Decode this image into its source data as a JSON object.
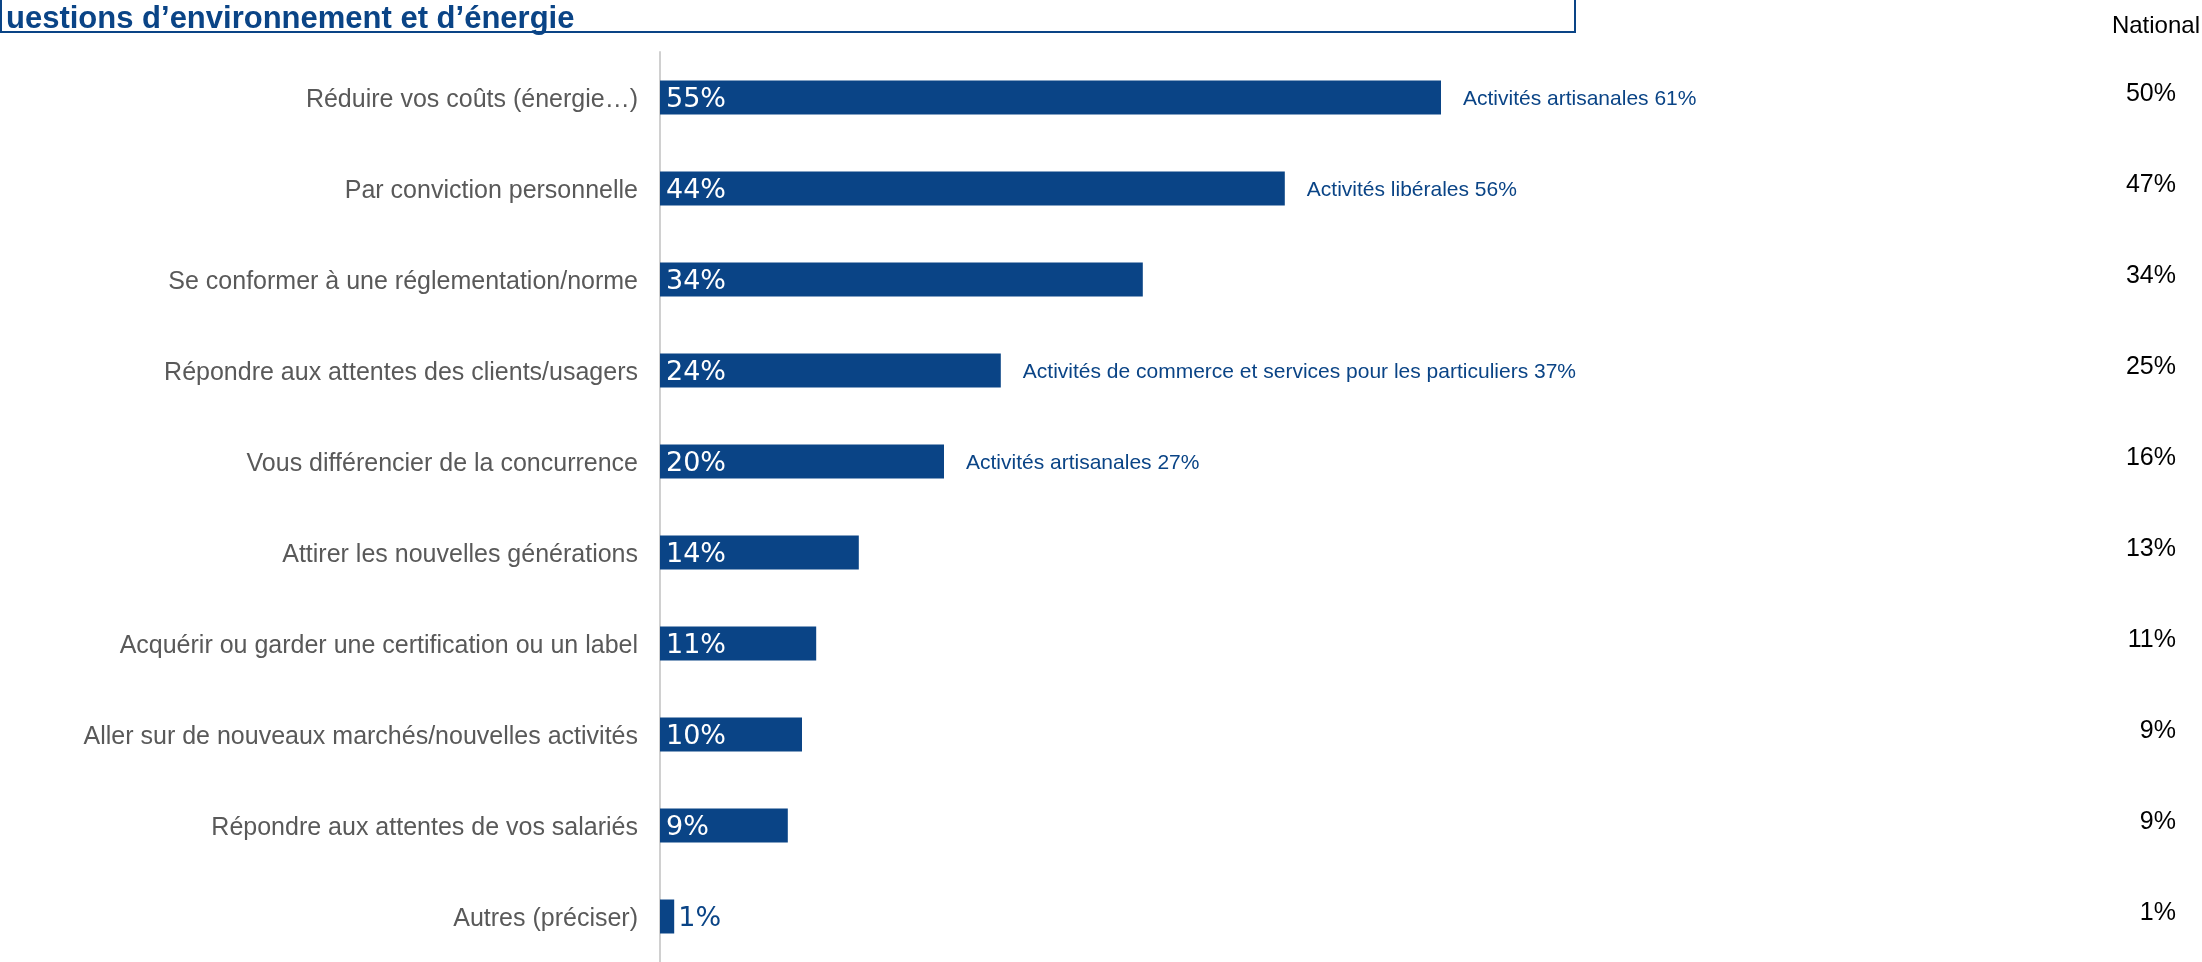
{
  "chart_data": {
    "type": "bar",
    "orientation": "horizontal",
    "title": "uestions d’environnement et d’énergie",
    "categories": [
      "Réduire vos coûts (énergie…)",
      "Par conviction personnelle",
      "Se conformer à une réglementation/norme",
      "Répondre aux attentes des clients/usagers",
      "Vous différencier de la concurrence",
      "Attirer les nouvelles générations",
      "Acquérir ou garder une certification ou un label",
      "Aller sur de nouveaux marchés/nouvelles activités",
      "Répondre aux attentes de vos salariés",
      "Autres (préciser)"
    ],
    "series": [
      {
        "color": "#0a4486",
        "values": [
          55,
          44,
          34,
          24,
          20,
          14,
          11,
          10,
          9,
          1
        ],
        "value_labels": [
          "55%",
          "44%",
          "34%",
          "24%",
          "20%",
          "14%",
          "11%",
          "10%",
          "9%",
          "1%"
        ]
      }
    ],
    "annotations": [
      {
        "text": "Activités artisanales 61%",
        "x": 55,
        "y": "Réduire vos coûts (énergie…)"
      },
      {
        "text": "Activités libérales 56%",
        "x": 44,
        "y": "Par conviction personnelle"
      },
      {
        "text": "Activités de commerce et services pour les particuliers 37%",
        "x": 24,
        "y": "Répondre aux attentes des clients/usagers"
      },
      {
        "text": "Activités artisanales 27%",
        "x": 20,
        "y": "Vous différencier de la concurrence"
      },
      "National",
      "50%",
      "47%",
      "34%",
      "25%",
      "16%",
      "13%",
      "11%",
      "9%",
      "9%",
      "1%"
    ]
  }
}
